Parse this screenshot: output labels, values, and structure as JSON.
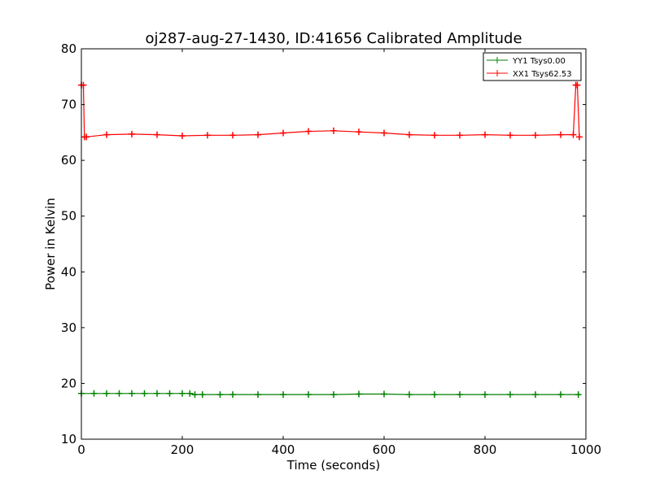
{
  "chart_data": {
    "type": "line",
    "title": "oj287-aug-27-1430, ID:41656 Calibrated Amplitude",
    "xlabel": "Time (seconds)",
    "ylabel": "Power in Kelvin",
    "xlim": [
      0,
      1000
    ],
    "ylim": [
      10,
      80
    ],
    "xticks": [
      0,
      200,
      400,
      600,
      800,
      1000
    ],
    "yticks": [
      10,
      20,
      30,
      40,
      50,
      60,
      70,
      80
    ],
    "grid": false,
    "legend_position": "top-right",
    "series": [
      {
        "name": "YY1 Tsys0.00",
        "color": "#008000",
        "marker": "+",
        "x": [
          0,
          25,
          50,
          75,
          100,
          125,
          150,
          175,
          200,
          215,
          225,
          240,
          275,
          300,
          350,
          400,
          450,
          500,
          550,
          600,
          650,
          700,
          750,
          800,
          850,
          900,
          950,
          985
        ],
        "y": [
          18.2,
          18.2,
          18.2,
          18.2,
          18.2,
          18.2,
          18.2,
          18.2,
          18.2,
          18.2,
          18.0,
          18.0,
          18.0,
          18.0,
          18.0,
          18.0,
          18.0,
          18.0,
          18.1,
          18.1,
          18.0,
          18.0,
          18.0,
          18.0,
          18.0,
          18.0,
          18.0,
          18.0
        ]
      },
      {
        "name": "XX1 Tsys62.53",
        "color": "#ff0000",
        "marker": "+",
        "x": [
          0,
          4,
          6,
          10,
          50,
          100,
          150,
          200,
          250,
          300,
          350,
          400,
          450,
          500,
          550,
          600,
          650,
          700,
          750,
          800,
          850,
          900,
          950,
          975,
          980,
          983,
          987
        ],
        "y": [
          73.5,
          73.5,
          64.2,
          64.2,
          64.6,
          64.7,
          64.6,
          64.4,
          64.5,
          64.5,
          64.6,
          64.9,
          65.2,
          65.3,
          65.1,
          64.9,
          64.6,
          64.5,
          64.5,
          64.6,
          64.5,
          64.5,
          64.6,
          64.6,
          73.5,
          73.5,
          64.2
        ]
      }
    ]
  }
}
